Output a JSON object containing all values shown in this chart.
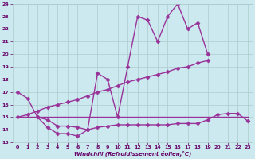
{
  "xlabel": "Windchill (Refroidissement éolien,°C)",
  "background_color": "#cce9f0",
  "grid_color": "#aacccc",
  "line_color": "#993399",
  "xlim": [
    -0.5,
    23.5
  ],
  "ylim": [
    13,
    24
  ],
  "yticks": [
    13,
    14,
    15,
    16,
    17,
    18,
    19,
    20,
    21,
    22,
    23,
    24
  ],
  "xticks": [
    0,
    1,
    2,
    3,
    4,
    5,
    6,
    7,
    8,
    9,
    10,
    11,
    12,
    13,
    14,
    15,
    16,
    17,
    18,
    19,
    20,
    21,
    22,
    23
  ],
  "series": [
    {
      "x": [
        0,
        1,
        2,
        3,
        4,
        5,
        6,
        7,
        8,
        9,
        10,
        11,
        12,
        13,
        14,
        15,
        16,
        17,
        18,
        19
      ],
      "y": [
        17,
        16.5,
        15,
        14.2,
        13.7,
        13.7,
        13.5,
        14.0,
        18.5,
        18.0,
        15.0,
        19.0,
        23.0,
        22.7,
        21.0,
        23.0,
        24.0,
        22.0,
        22.5,
        20.0
      ],
      "marker": "D",
      "markersize": 2.5,
      "linewidth": 1.0
    },
    {
      "x": [
        2,
        3,
        4,
        5,
        6,
        7,
        8,
        9,
        10,
        11,
        12,
        13,
        14,
        15,
        16,
        17,
        18,
        19,
        20,
        21,
        22,
        23
      ],
      "y": [
        15.0,
        14.8,
        14.3,
        14.3,
        14.2,
        14.0,
        14.2,
        14.3,
        14.4,
        14.4,
        14.4,
        14.4,
        14.4,
        14.4,
        14.5,
        14.5,
        14.5,
        14.8,
        15.2,
        15.3,
        15.3,
        14.7
      ],
      "marker": "D",
      "markersize": 2.5,
      "linewidth": 1.0
    },
    {
      "x": [
        0,
        1,
        2,
        3,
        4,
        5,
        6,
        7,
        8,
        9,
        10,
        11,
        12,
        13,
        14,
        15,
        16,
        17,
        18,
        19,
        20,
        21,
        22,
        23
      ],
      "y": [
        15.0,
        15.0,
        15.0,
        15.0,
        15.0,
        15.0,
        15.0,
        15.0,
        15.0,
        15.0,
        15.0,
        15.0,
        15.0,
        15.0,
        15.0,
        15.0,
        15.0,
        15.0,
        15.0,
        15.0,
        15.0,
        15.0,
        15.0,
        15.0
      ],
      "marker": null,
      "markersize": 0,
      "linewidth": 1.0
    },
    {
      "x": [
        0,
        1,
        2,
        3,
        4,
        5,
        6,
        7,
        8,
        9,
        10,
        11,
        12,
        13,
        14,
        15,
        16,
        17,
        18,
        19
      ],
      "y": [
        15.0,
        15.2,
        15.5,
        15.8,
        16.0,
        16.2,
        16.4,
        16.7,
        17.0,
        17.2,
        17.5,
        17.8,
        18.0,
        18.2,
        18.4,
        18.6,
        18.9,
        19.0,
        19.3,
        19.5
      ],
      "marker": "D",
      "markersize": 2.5,
      "linewidth": 1.0
    }
  ]
}
